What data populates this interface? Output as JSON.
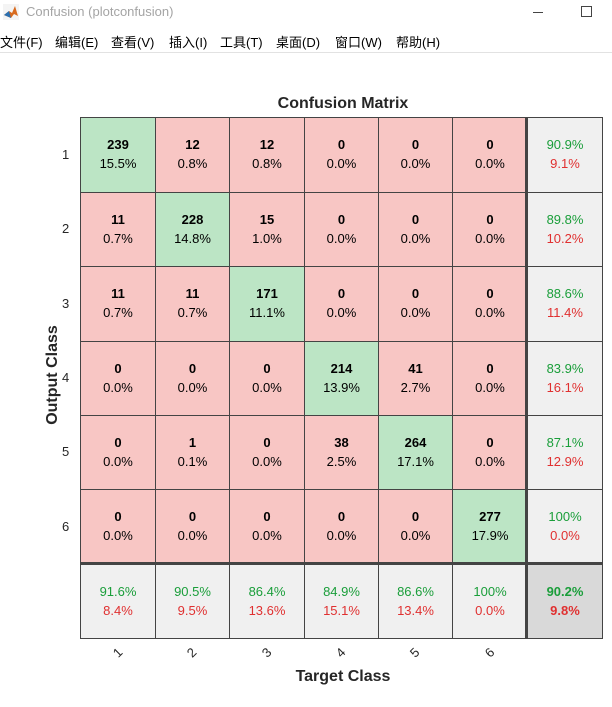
{
  "window": {
    "title": "Confusion (plotconfusion)"
  },
  "menu": [
    "文件(F)",
    "编辑(E)",
    "查看(V)",
    "插入(I)",
    "工具(T)",
    "桌面(D)",
    "窗口(W)",
    "帮助(H)"
  ],
  "colors": {
    "correct": "#bce5c5",
    "incorrect": "#f8c6c4",
    "summary": "#f0f0f0",
    "overall": "#d9d9d9",
    "green_text": "#1a9e3a",
    "red_text": "#e03030"
  },
  "chart_data": {
    "type": "heatmap",
    "title": "Confusion Matrix",
    "xlabel": "Target Class",
    "ylabel": "Output Class",
    "x_categories": [
      "1",
      "2",
      "3",
      "4",
      "5",
      "6"
    ],
    "y_categories": [
      "1",
      "2",
      "3",
      "4",
      "5",
      "6"
    ],
    "matrix": [
      [
        239,
        12,
        12,
        0,
        0,
        0
      ],
      [
        11,
        228,
        15,
        0,
        0,
        0
      ],
      [
        11,
        11,
        171,
        0,
        0,
        0
      ],
      [
        0,
        0,
        0,
        214,
        41,
        0
      ],
      [
        0,
        1,
        0,
        38,
        264,
        0
      ],
      [
        0,
        0,
        0,
        0,
        0,
        277
      ]
    ],
    "percent": [
      [
        "15.5%",
        "0.8%",
        "0.8%",
        "0.0%",
        "0.0%",
        "0.0%"
      ],
      [
        "0.7%",
        "14.8%",
        "1.0%",
        "0.0%",
        "0.0%",
        "0.0%"
      ],
      [
        "0.7%",
        "0.7%",
        "11.1%",
        "0.0%",
        "0.0%",
        "0.0%"
      ],
      [
        "0.0%",
        "0.0%",
        "0.0%",
        "13.9%",
        "2.7%",
        "0.0%"
      ],
      [
        "0.0%",
        "0.1%",
        "0.0%",
        "2.5%",
        "17.1%",
        "0.0%"
      ],
      [
        "0.0%",
        "0.0%",
        "0.0%",
        "0.0%",
        "0.0%",
        "17.9%"
      ]
    ],
    "row_summary": [
      {
        "correct": "90.9%",
        "error": "9.1%"
      },
      {
        "correct": "89.8%",
        "error": "10.2%"
      },
      {
        "correct": "88.6%",
        "error": "11.4%"
      },
      {
        "correct": "83.9%",
        "error": "16.1%"
      },
      {
        "correct": "87.1%",
        "error": "12.9%"
      },
      {
        "correct": "100%",
        "error": "0.0%"
      }
    ],
    "col_summary": [
      {
        "correct": "91.6%",
        "error": "8.4%"
      },
      {
        "correct": "90.5%",
        "error": "9.5%"
      },
      {
        "correct": "86.4%",
        "error": "13.6%"
      },
      {
        "correct": "84.9%",
        "error": "15.1%"
      },
      {
        "correct": "86.6%",
        "error": "13.4%"
      },
      {
        "correct": "100%",
        "error": "0.0%"
      }
    ],
    "overall": {
      "correct": "90.2%",
      "error": "9.8%"
    }
  }
}
